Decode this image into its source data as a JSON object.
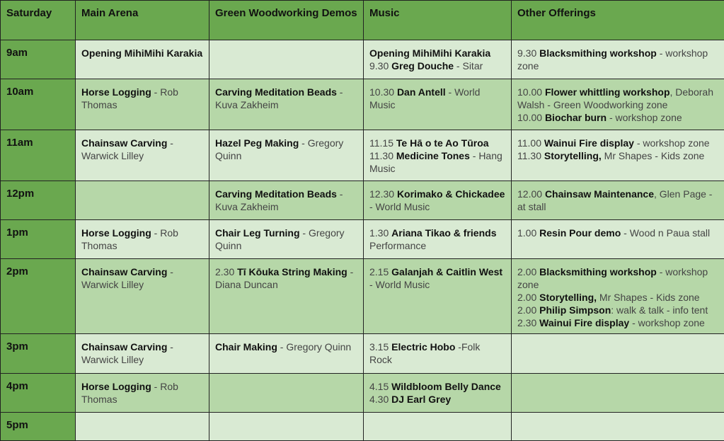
{
  "headers": [
    "Saturday",
    "Main Arena",
    "Green Woodworking Demos",
    "Music",
    "Other Offerings"
  ],
  "colors": {
    "header": "#6aa84f",
    "row_light": "#d9ead3",
    "row_dark": "#b6d7a8"
  },
  "rows": [
    {
      "time": "9am",
      "cells": [
        [
          [
            {
              "b": "Opening MihiMihi Karakia"
            }
          ]
        ],
        [],
        [
          [
            {
              "b": "Opening MihiMihi Karakia"
            }
          ],
          [
            {
              "t": "9.30 "
            },
            {
              "b": "Greg Douche"
            },
            {
              "t": " - Sitar"
            }
          ]
        ],
        [
          [
            {
              "t": "9.30 "
            },
            {
              "b": "Blacksmithing workshop"
            },
            {
              "t": " - workshop zone"
            }
          ]
        ]
      ]
    },
    {
      "time": "10am",
      "cells": [
        [
          [
            {
              "b": "Horse Logging"
            },
            {
              "t": " - Rob Thomas"
            }
          ]
        ],
        [
          [
            {
              "b": "Carving Meditation Beads"
            },
            {
              "t": " - Kuva Zakheim"
            }
          ]
        ],
        [
          [
            {
              "t": "10.30 "
            },
            {
              "b": "Dan Antell"
            },
            {
              "t": " - World Music"
            }
          ]
        ],
        [
          [
            {
              "t": "10.00 "
            },
            {
              "b": "Flower whittling workshop"
            },
            {
              "t": ", Deborah Walsh - Green Woodworking zone"
            }
          ],
          [
            {
              "t": "10.00 "
            },
            {
              "b": "Biochar burn"
            },
            {
              "t": " - workshop zone"
            }
          ]
        ]
      ]
    },
    {
      "time": "11am",
      "cells": [
        [
          [
            {
              "b": "Chainsaw Carving"
            },
            {
              "t": " - Warwick Lilley"
            }
          ]
        ],
        [
          [
            {
              "b": "Hazel Peg Making"
            },
            {
              "t": " - Gregory Quinn"
            }
          ]
        ],
        [
          [
            {
              "t": "11.15 "
            },
            {
              "b": "Te Hā o te Ao Tūroa"
            }
          ],
          [
            {
              "t": "11.30 "
            },
            {
              "b": "Medicine Tones"
            },
            {
              "t": " - Hang Music"
            }
          ]
        ],
        [
          [
            {
              "t": "11.00 "
            },
            {
              "b": "Wainui Fire display"
            },
            {
              "t": " - workshop zone"
            }
          ],
          [
            {
              "t": "11.30 "
            },
            {
              "b": "Storytelling,"
            },
            {
              "t": " Mr Shapes - Kids zone"
            }
          ]
        ]
      ]
    },
    {
      "time": "12pm",
      "cells": [
        [],
        [
          [
            {
              "b": "Carving Meditation Beads"
            },
            {
              "t": " - Kuva Zakheim"
            }
          ]
        ],
        [
          [
            {
              "t": "12.30 "
            },
            {
              "b": "Korimako & Chickadee"
            },
            {
              "t": " - World Music"
            }
          ]
        ],
        [
          [
            {
              "t": "12.00 "
            },
            {
              "b": "Chainsaw Maintenance"
            },
            {
              "t": ", Glen Page - at stall"
            }
          ]
        ]
      ]
    },
    {
      "time": "1pm",
      "cells": [
        [
          [
            {
              "b": "Horse Logging"
            },
            {
              "t": " - Rob Thomas"
            }
          ]
        ],
        [
          [
            {
              "b": "Chair Leg Turning"
            },
            {
              "t": " - Gregory Quinn"
            }
          ]
        ],
        [
          [
            {
              "t": "1.30 "
            },
            {
              "b": "Ariana Tikao & friends"
            },
            {
              "t": " Performance"
            }
          ]
        ],
        [
          [
            {
              "t": "1.00 "
            },
            {
              "b": "Resin Pour demo"
            },
            {
              "t": " - Wood n Paua stall"
            }
          ]
        ]
      ]
    },
    {
      "time": "2pm",
      "cells": [
        [
          [
            {
              "b": "Chainsaw Carving"
            },
            {
              "t": " - Warwick Lilley"
            }
          ]
        ],
        [
          [
            {
              "t": "2.30 "
            },
            {
              "b": "Tī Kōuka String Making"
            },
            {
              "t": " - Diana Duncan"
            }
          ]
        ],
        [
          [
            {
              "t": "2.15 "
            },
            {
              "b": "Galanjah & Caitlin West"
            },
            {
              "t": " - World Music"
            }
          ]
        ],
        [
          [
            {
              "t": "2.00 "
            },
            {
              "b": "Blacksmithing workshop"
            },
            {
              "t": " - workshop zone"
            }
          ],
          [
            {
              "t": "2.00 "
            },
            {
              "b": "Storytelling,"
            },
            {
              "t": " Mr Shapes - Kids zone"
            }
          ],
          [
            {
              "t": "2.00 "
            },
            {
              "b": "Philip Simpson"
            },
            {
              "t": ": walk & talk - info tent"
            }
          ],
          [
            {
              "t": "2.30 "
            },
            {
              "b": "Wainui Fire display"
            },
            {
              "t": " - workshop zone"
            }
          ]
        ]
      ]
    },
    {
      "time": "3pm",
      "cells": [
        [
          [
            {
              "b": "Chainsaw Carving"
            },
            {
              "t": " - Warwick Lilley"
            }
          ]
        ],
        [
          [
            {
              "b": "Chair Making"
            },
            {
              "t": " - Gregory Quinn"
            }
          ]
        ],
        [
          [
            {
              "t": "3.15  "
            },
            {
              "b": "Electric Hobo"
            },
            {
              "t": " -Folk Rock"
            }
          ]
        ],
        []
      ]
    },
    {
      "time": "4pm",
      "cells": [
        [
          [
            {
              "b": "Horse Logging"
            },
            {
              "t": " - Rob Thomas"
            }
          ]
        ],
        [],
        [
          [
            {
              "t": "4.15 "
            },
            {
              "b": "Wildbloom Belly Dance"
            }
          ],
          [
            {
              "t": "4.30 "
            },
            {
              "b": "DJ Earl Grey"
            }
          ]
        ],
        []
      ]
    },
    {
      "time": "5pm",
      "cells": [
        [],
        [],
        [],
        []
      ]
    }
  ]
}
